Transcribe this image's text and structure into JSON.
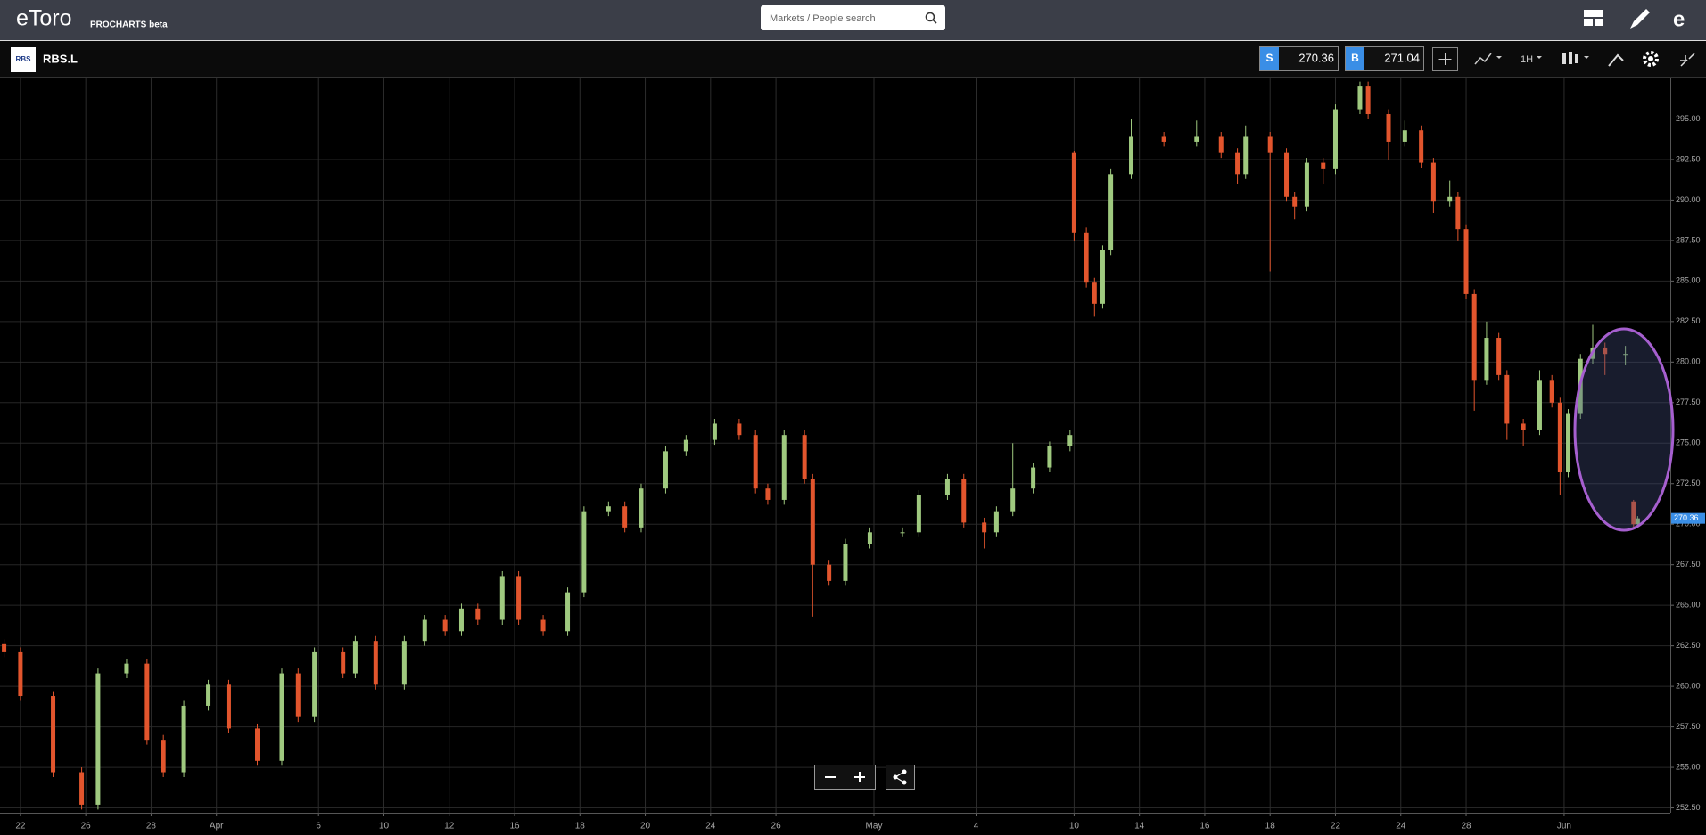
{
  "header": {
    "logo": "eToro",
    "product": "PROCHARTS beta",
    "search_placeholder": "Markets / People search"
  },
  "toolbar": {
    "logo_text": "RBS",
    "symbol": "RBS.L",
    "sell": {
      "label": "S",
      "value": 270.36
    },
    "buy": {
      "label": "B",
      "value": 271.04
    },
    "interval": "1H"
  },
  "chart_data": {
    "type": "candlestick",
    "x": [
      1,
      5,
      13,
      20,
      24,
      31,
      36,
      40,
      45,
      51,
      56,
      63,
      69,
      73,
      77,
      84,
      87,
      92,
      99,
      104,
      109,
      113,
      117,
      123,
      127,
      133,
      139,
      143,
      149,
      153,
      157,
      163,
      168,
      175,
      181,
      185,
      188,
      192,
      197,
      199,
      203,
      207,
      213,
      221,
      225,
      232,
      236,
      241,
      244,
      248,
      253,
      257,
      262,
      263,
      266,
      268,
      270,
      272,
      277,
      285,
      293,
      299,
      303,
      305,
      311,
      315,
      317,
      320,
      324,
      327,
      333,
      335,
      340,
      344,
      348,
      351,
      355,
      357,
      359,
      361,
      364,
      367,
      369,
      373,
      377,
      380,
      382,
      384,
      387,
      390,
      393,
      398,
      400,
      401
    ],
    "open": [
      262.6,
      262.1,
      259.4,
      254.7,
      252.7,
      260.8,
      261.4,
      256.7,
      254.7,
      258.8,
      260.1,
      257.4,
      255.4,
      260.8,
      258.1,
      262.1,
      260.8,
      262.8,
      260.1,
      262.8,
      264.1,
      263.4,
      264.8,
      264.1,
      266.8,
      264.1,
      263.4,
      265.8,
      270.8,
      271.1,
      269.8,
      272.2,
      274.5,
      275.2,
      276.2,
      275.5,
      272.2,
      271.5,
      275.5,
      272.8,
      267.5,
      266.5,
      268.8,
      269.5,
      269.5,
      271.8,
      272.8,
      270.1,
      269.5,
      270.8,
      272.2,
      273.5,
      274.8,
      292.9,
      288.0,
      284.9,
      283.6,
      286.9,
      291.6,
      293.9,
      293.6,
      293.9,
      292.9,
      291.6,
      293.9,
      292.9,
      290.2,
      289.6,
      292.3,
      291.9,
      295.6,
      297.0,
      295.3,
      293.6,
      294.3,
      292.3,
      289.9,
      290.2,
      288.2,
      284.2,
      278.9,
      281.5,
      279.2,
      276.2,
      275.8,
      278.9,
      277.5,
      273.2,
      276.8,
      280.2,
      280.9,
      280.5,
      271.4,
      270.0
    ],
    "high": [
      262.9,
      262.4,
      259.7,
      255.0,
      261.1,
      261.7,
      261.7,
      257.0,
      259.1,
      260.4,
      260.4,
      257.7,
      261.1,
      261.1,
      262.4,
      262.4,
      263.1,
      263.1,
      263.1,
      264.4,
      264.4,
      265.1,
      265.1,
      267.1,
      267.1,
      264.4,
      266.1,
      271.1,
      271.4,
      271.4,
      272.5,
      274.8,
      275.5,
      276.5,
      276.5,
      275.8,
      272.5,
      275.8,
      275.8,
      273.1,
      267.8,
      269.1,
      269.8,
      269.8,
      272.1,
      273.1,
      273.1,
      270.4,
      271.1,
      275.0,
      273.8,
      275.1,
      275.8,
      293.0,
      288.3,
      285.2,
      287.2,
      291.9,
      295.0,
      294.2,
      294.9,
      294.2,
      293.2,
      294.6,
      294.2,
      293.2,
      290.5,
      292.6,
      292.6,
      295.9,
      297.3,
      297.3,
      295.6,
      294.9,
      294.6,
      292.6,
      291.2,
      290.5,
      288.5,
      284.5,
      282.5,
      281.8,
      279.5,
      276.5,
      279.5,
      279.2,
      277.8,
      277.1,
      280.5,
      282.3,
      281.2,
      281.0,
      271.5,
      270.5
    ],
    "low": [
      261.8,
      259.1,
      254.4,
      252.4,
      252.4,
      260.5,
      256.4,
      254.4,
      254.4,
      258.5,
      257.1,
      255.1,
      255.1,
      257.8,
      257.8,
      260.5,
      260.5,
      259.8,
      259.8,
      262.5,
      263.1,
      263.1,
      263.8,
      263.8,
      263.8,
      263.1,
      263.1,
      265.5,
      270.5,
      269.5,
      269.5,
      271.9,
      274.2,
      274.9,
      275.2,
      271.9,
      271.2,
      271.2,
      272.5,
      264.3,
      266.2,
      266.2,
      268.5,
      269.2,
      269.2,
      271.5,
      269.8,
      268.5,
      269.2,
      270.5,
      271.9,
      273.2,
      274.5,
      287.5,
      284.6,
      282.8,
      283.3,
      286.6,
      291.3,
      293.3,
      293.3,
      292.6,
      291.0,
      291.3,
      285.6,
      289.9,
      288.8,
      289.3,
      291.0,
      291.6,
      295.3,
      295.0,
      292.5,
      293.3,
      292.0,
      289.2,
      289.6,
      287.5,
      283.9,
      277.0,
      278.6,
      278.9,
      275.2,
      274.8,
      275.5,
      277.2,
      271.8,
      272.9,
      276.5,
      279.9,
      279.2,
      279.8,
      269.8,
      269.9
    ],
    "close": [
      262.1,
      259.4,
      254.7,
      252.7,
      260.8,
      261.4,
      256.7,
      254.7,
      258.8,
      260.1,
      257.4,
      255.4,
      260.8,
      258.1,
      262.1,
      260.8,
      262.8,
      260.1,
      262.8,
      264.1,
      263.4,
      264.8,
      264.1,
      266.8,
      264.1,
      263.4,
      265.8,
      270.8,
      271.1,
      269.8,
      272.2,
      274.5,
      275.2,
      276.2,
      275.5,
      272.2,
      271.5,
      275.5,
      272.8,
      267.5,
      266.5,
      268.8,
      269.5,
      269.5,
      271.8,
      272.8,
      270.1,
      269.5,
      270.8,
      272.2,
      273.5,
      274.8,
      275.5,
      288.0,
      284.9,
      283.6,
      286.9,
      291.6,
      293.9,
      293.6,
      293.9,
      292.9,
      291.6,
      293.9,
      292.9,
      290.2,
      289.6,
      292.3,
      291.9,
      295.6,
      297.0,
      295.3,
      293.6,
      294.3,
      292.3,
      289.9,
      290.2,
      288.2,
      284.2,
      278.9,
      281.5,
      279.2,
      276.2,
      275.8,
      278.9,
      277.5,
      273.2,
      276.8,
      280.2,
      280.9,
      280.5,
      280.5,
      270.0,
      270.36
    ],
    "up_color": "#9fc97f",
    "down_color": "#e2552d",
    "xlim": [
      0,
      409
    ],
    "ylim": [
      252.2,
      297.5
    ],
    "xticks": [
      {
        "value": 5,
        "label": "22"
      },
      {
        "value": 21,
        "label": "26"
      },
      {
        "value": 37,
        "label": "28"
      },
      {
        "value": 53,
        "label": "Apr"
      },
      {
        "value": 78,
        "label": "6"
      },
      {
        "value": 94,
        "label": "10"
      },
      {
        "value": 110,
        "label": "12"
      },
      {
        "value": 126,
        "label": "16"
      },
      {
        "value": 142,
        "label": "18"
      },
      {
        "value": 158,
        "label": "20"
      },
      {
        "value": 174,
        "label": "24"
      },
      {
        "value": 190,
        "label": "26"
      },
      {
        "value": 214,
        "label": "May"
      },
      {
        "value": 239,
        "label": "4"
      },
      {
        "value": 263,
        "label": "10"
      },
      {
        "value": 279,
        "label": "14"
      },
      {
        "value": 295,
        "label": "16"
      },
      {
        "value": 311,
        "label": "18"
      },
      {
        "value": 327,
        "label": "22"
      },
      {
        "value": 343,
        "label": "24"
      },
      {
        "value": 359,
        "label": "28"
      },
      {
        "value": 383,
        "label": "Jun"
      }
    ],
    "yticks": [
      {
        "value": 252.5,
        "label": "252.50"
      },
      {
        "value": 255,
        "label": "255.00"
      },
      {
        "value": 257.5,
        "label": "257.50"
      },
      {
        "value": 260,
        "label": "260.00"
      },
      {
        "value": 262.5,
        "label": "262.50"
      },
      {
        "value": 265,
        "label": "265.00"
      },
      {
        "value": 267.5,
        "label": "267.50"
      },
      {
        "value": 270,
        "label": "270.00"
      },
      {
        "value": 272.5,
        "label": "272.50"
      },
      {
        "value": 275,
        "label": "275.00"
      },
      {
        "value": 277.5,
        "label": "277.50"
      },
      {
        "value": 280,
        "label": "280.00"
      },
      {
        "value": 282.5,
        "label": "282.50"
      },
      {
        "value": 285,
        "label": "285.00"
      },
      {
        "value": 287.5,
        "label": "287.50"
      },
      {
        "value": 290,
        "label": "290.00"
      },
      {
        "value": 292.5,
        "label": "292.50"
      },
      {
        "value": 295,
        "label": "295.00"
      }
    ],
    "grid": true
  }
}
